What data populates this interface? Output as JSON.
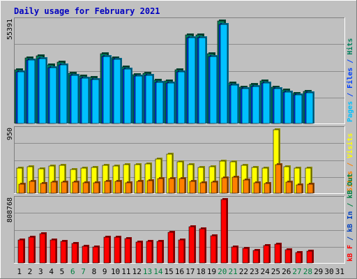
{
  "title": "Daily usage for February 2021",
  "colors": {
    "page_bg": "#C0C0C0",
    "plot_bg": "#C0C0C0",
    "border_light": "#FFFFFF",
    "border_dark": "#808080",
    "title": "#0000C0",
    "hits": "#00805C",
    "files": "#0040FF",
    "pages": "#00C0FF",
    "visits": "#FFFF00",
    "sites": "#FF8000",
    "kb_out": "#008040",
    "kb_in": "#0040C0",
    "kb_f": "#FF0000",
    "weekday_label": "#000000",
    "weekend_label": "#008040"
  },
  "day_labels": [
    "1",
    "2",
    "3",
    "4",
    "5",
    "6",
    "7",
    "8",
    "9",
    "10",
    "11",
    "12",
    "13",
    "14",
    "15",
    "16",
    "17",
    "18",
    "19",
    "20",
    "21",
    "22",
    "23",
    "24",
    "25",
    "26",
    "27",
    "28",
    "29",
    "30",
    "31"
  ],
  "weekend_days": [
    6,
    7,
    13,
    14,
    20,
    21,
    27,
    28
  ],
  "chart_data": [
    {
      "type": "bar",
      "panel": "hits-files-pages",
      "title": "Daily usage for February 2021",
      "max_label": "55391",
      "ylim": [
        0,
        55391
      ],
      "right_labels": [
        {
          "text": "Pages",
          "color_key": "pages"
        },
        {
          "text": " / ",
          "color_key": "files"
        },
        {
          "text": "Files",
          "color_key": "files"
        },
        {
          "text": " / ",
          "color_key": "files"
        },
        {
          "text": "Hits",
          "color_key": "hits"
        }
      ],
      "categories": [
        "1",
        "2",
        "3",
        "4",
        "5",
        "6",
        "7",
        "8",
        "9",
        "10",
        "11",
        "12",
        "13",
        "14",
        "15",
        "16",
        "17",
        "18",
        "19",
        "20",
        "21",
        "22",
        "23",
        "24",
        "25",
        "26",
        "27",
        "28"
      ],
      "series": [
        {
          "name": "Hits",
          "color_key": "hits",
          "values": [
            29000,
            35500,
            36500,
            31500,
            33000,
            27000,
            25500,
            24900,
            37500,
            35500,
            30500,
            26500,
            27100,
            23300,
            22800,
            28900,
            48000,
            48000,
            37500,
            55391,
            21700,
            19700,
            21000,
            23100,
            19600,
            17900,
            16300,
            17500
          ]
        },
        {
          "name": "Files",
          "color_key": "files",
          "values": [
            28000,
            34300,
            35200,
            30200,
            31800,
            26000,
            24500,
            23700,
            36300,
            34500,
            29500,
            25500,
            26100,
            22300,
            21900,
            27900,
            46500,
            46500,
            36200,
            53500,
            20800,
            18800,
            20000,
            22000,
            18700,
            17000,
            15500,
            16500
          ]
        },
        {
          "name": "Pages",
          "color_key": "pages",
          "values": [
            28000,
            34300,
            35200,
            30200,
            31800,
            26000,
            24500,
            23700,
            36300,
            34500,
            29500,
            25500,
            26100,
            22300,
            21900,
            27900,
            46500,
            46500,
            36200,
            53500,
            20800,
            18800,
            20000,
            22000,
            18700,
            17000,
            15500,
            16500
          ]
        }
      ]
    },
    {
      "type": "bar",
      "panel": "visits-sites",
      "max_label": "950",
      "ylim": [
        0,
        950
      ],
      "right_labels": [
        {
          "text": "Sites",
          "color_key": "sites"
        },
        {
          "text": " / ",
          "color_key": "sites"
        },
        {
          "text": "Visits",
          "color_key": "visits"
        }
      ],
      "categories": [
        "1",
        "2",
        "3",
        "4",
        "5",
        "6",
        "7",
        "8",
        "9",
        "10",
        "11",
        "12",
        "13",
        "14",
        "15",
        "16",
        "17",
        "18",
        "19",
        "20",
        "21",
        "22",
        "23",
        "24",
        "25",
        "26",
        "27",
        "28"
      ],
      "series": [
        {
          "name": "Visits",
          "color_key": "visits",
          "values": [
            375,
            400,
            370,
            410,
            415,
            360,
            375,
            385,
            415,
            405,
            430,
            425,
            440,
            515,
            585,
            465,
            430,
            390,
            400,
            475,
            465,
            420,
            390,
            375,
            950,
            395,
            380,
            375
          ]
        },
        {
          "name": "Sites",
          "color_key": "sites",
          "values": [
            135,
            175,
            145,
            170,
            170,
            170,
            160,
            160,
            175,
            175,
            160,
            175,
            190,
            215,
            220,
            220,
            175,
            160,
            170,
            225,
            240,
            200,
            160,
            150,
            425,
            165,
            130,
            135
          ]
        }
      ]
    },
    {
      "type": "bar",
      "panel": "kbytes",
      "max_label": "808768",
      "ylim": [
        0,
        808768
      ],
      "right_labels": [
        {
          "text": "kB F",
          "color_key": "kb_f"
        },
        {
          "text": " / ",
          "color_key": "kb_in"
        },
        {
          "text": "kB In",
          "color_key": "kb_in"
        },
        {
          "text": " / ",
          "color_key": "kb_out"
        },
        {
          "text": "kB Out",
          "color_key": "kb_out"
        }
      ],
      "categories": [
        "1",
        "2",
        "3",
        "4",
        "5",
        "6",
        "7",
        "8",
        "9",
        "10",
        "11",
        "12",
        "13",
        "14",
        "15",
        "16",
        "17",
        "18",
        "19",
        "20",
        "21",
        "22",
        "23",
        "24",
        "25",
        "26",
        "27",
        "28"
      ],
      "series": [
        {
          "name": "kB F",
          "color_key": "kb_f",
          "values": [
            295000,
            330000,
            370000,
            295000,
            275000,
            250000,
            215000,
            200000,
            325000,
            330000,
            315000,
            270000,
            275000,
            275000,
            395000,
            290000,
            465000,
            435000,
            350000,
            808768,
            205000,
            185000,
            160000,
            225000,
            240000,
            170000,
            130000,
            150000
          ]
        }
      ]
    }
  ]
}
